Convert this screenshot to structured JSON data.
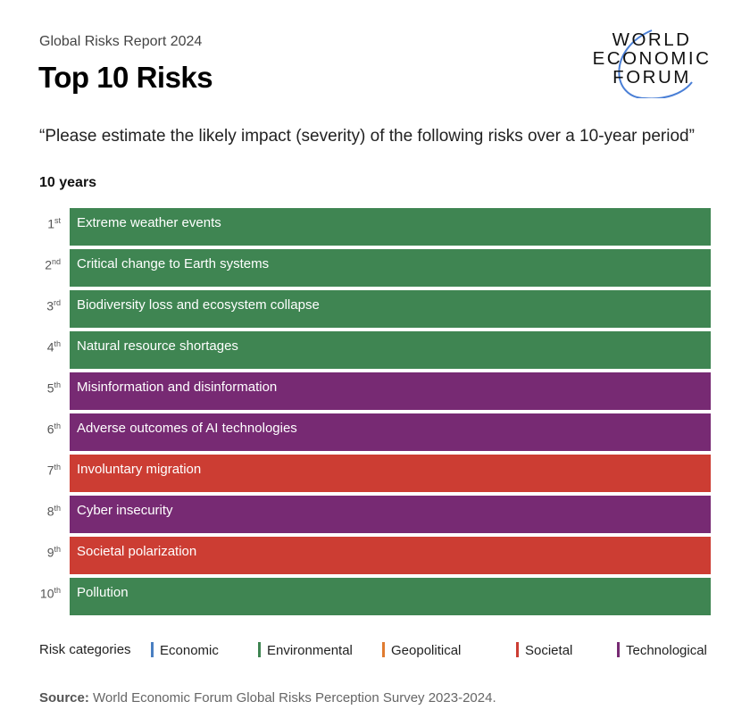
{
  "header": {
    "supertitle": "Global Risks Report 2024",
    "title": "Top 10 Risks",
    "logo_text": [
      "WORLD",
      "ECONOMIC",
      "FORUM"
    ]
  },
  "quote": "“Please estimate the likely impact (severity) of the following risks over a 10-year period”",
  "chart_data": {
    "type": "table",
    "subtitle": "10 years",
    "columns": [
      "rank",
      "risk",
      "category"
    ],
    "rows": [
      {
        "rank": "1",
        "suffix": "st",
        "risk": "Extreme weather events",
        "category": "Environmental"
      },
      {
        "rank": "2",
        "suffix": "nd",
        "risk": "Critical change to Earth systems",
        "category": "Environmental"
      },
      {
        "rank": "3",
        "suffix": "rd",
        "risk": "Biodiversity loss and ecosystem collapse",
        "category": "Environmental"
      },
      {
        "rank": "4",
        "suffix": "th",
        "risk": "Natural resource shortages",
        "category": "Environmental"
      },
      {
        "rank": "5",
        "suffix": "th",
        "risk": "Misinformation and disinformation",
        "category": "Technological"
      },
      {
        "rank": "6",
        "suffix": "th",
        "risk": "Adverse outcomes of AI technologies",
        "category": "Technological"
      },
      {
        "rank": "7",
        "suffix": "th",
        "risk": "Involuntary migration",
        "category": "Societal"
      },
      {
        "rank": "8",
        "suffix": "th",
        "risk": "Cyber insecurity",
        "category": "Technological"
      },
      {
        "rank": "9",
        "suffix": "th",
        "risk": "Societal polarization",
        "category": "Societal"
      },
      {
        "rank": "10",
        "suffix": "th",
        "risk": "Pollution",
        "category": "Environmental"
      }
    ],
    "legend": {
      "title": "Risk categories",
      "items": [
        {
          "name": "Economic",
          "color": "#4a7fc1"
        },
        {
          "name": "Environmental",
          "color": "#3f8552"
        },
        {
          "name": "Geopolitical",
          "color": "#e07b30"
        },
        {
          "name": "Societal",
          "color": "#cc3d33"
        },
        {
          "name": "Technological",
          "color": "#772a73"
        }
      ]
    }
  },
  "source": {
    "label": "Source:",
    "text": "World Economic Forum Global Risks Perception Survey 2023-2024."
  }
}
